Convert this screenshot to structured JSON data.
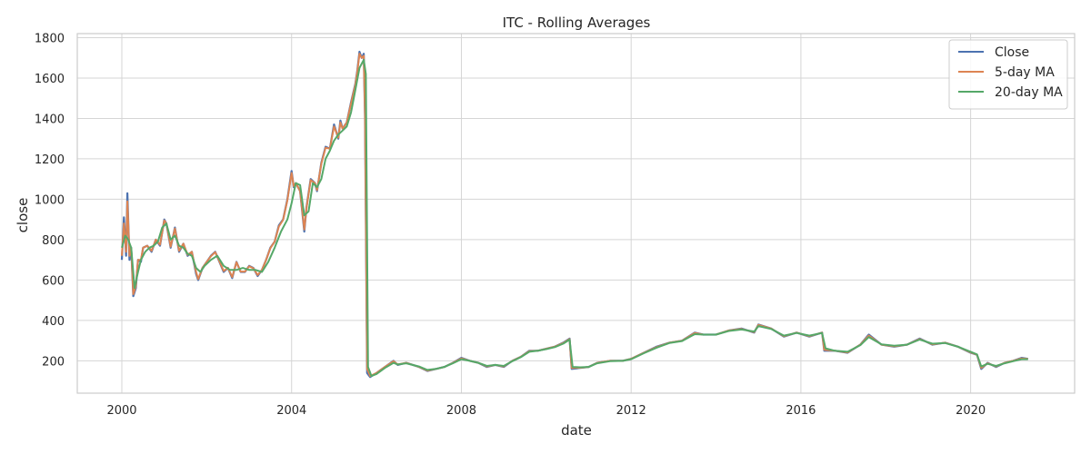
{
  "chart_data": {
    "type": "line",
    "title": "ITC - Rolling Averages",
    "xlabel": "date",
    "ylabel": "close",
    "xlim": [
      1998.95,
      2022.45
    ],
    "ylim": [
      40,
      1820
    ],
    "x_ticks": [
      2000,
      2004,
      2008,
      2012,
      2016,
      2020
    ],
    "x_tick_labels": [
      "2000",
      "2004",
      "2008",
      "2012",
      "2016",
      "2020"
    ],
    "y_ticks": [
      200,
      400,
      600,
      800,
      1000,
      1200,
      1400,
      1600,
      1800
    ],
    "y_tick_labels": [
      "200",
      "400",
      "600",
      "800",
      "1000",
      "1200",
      "1400",
      "1600",
      "1800"
    ],
    "grid": true,
    "legend_position": "top-right",
    "colors": {
      "Close": "#4c72b0",
      "5-day MA": "#dd8452",
      "20-day MA": "#55a868",
      "grid": "#d5d5d5",
      "axes": "#cccccc"
    },
    "series": [
      {
        "name": "Close",
        "x": [
          2000.0,
          2000.05,
          2000.1,
          2000.13,
          2000.18,
          2000.22,
          2000.27,
          2000.33,
          2000.38,
          2000.45,
          2000.5,
          2000.6,
          2000.7,
          2000.8,
          2000.9,
          2001.0,
          2001.05,
          2001.15,
          2001.25,
          2001.35,
          2001.45,
          2001.55,
          2001.65,
          2001.75,
          2001.8,
          2001.9,
          2002.0,
          2002.1,
          2002.2,
          2002.3,
          2002.4,
          2002.5,
          2002.6,
          2002.7,
          2002.8,
          2002.9,
          2003.0,
          2003.1,
          2003.2,
          2003.3,
          2003.4,
          2003.5,
          2003.6,
          2003.7,
          2003.8,
          2003.9,
          2004.0,
          2004.05,
          2004.1,
          2004.2,
          2004.3,
          2004.35,
          2004.45,
          2004.55,
          2004.6,
          2004.7,
          2004.8,
          2004.9,
          2005.0,
          2005.1,
          2005.15,
          2005.2,
          2005.3,
          2005.4,
          2005.5,
          2005.55,
          2005.6,
          2005.65,
          2005.7,
          2005.73,
          2005.78,
          2005.85,
          2006.0,
          2006.2,
          2006.4,
          2006.5,
          2006.7,
          2007.0,
          2007.2,
          2007.4,
          2007.6,
          2007.8,
          2008.0,
          2008.2,
          2008.4,
          2008.6,
          2008.8,
          2009.0,
          2009.2,
          2009.4,
          2009.6,
          2009.8,
          2010.0,
          2010.2,
          2010.4,
          2010.55,
          2010.6,
          2010.8,
          2011.0,
          2011.2,
          2011.5,
          2011.8,
          2012.0,
          2012.3,
          2012.6,
          2012.9,
          2013.2,
          2013.5,
          2013.7,
          2014.0,
          2014.3,
          2014.6,
          2014.9,
          2015.0,
          2015.3,
          2015.6,
          2015.9,
          2016.2,
          2016.5,
          2016.55,
          2016.8,
          2017.1,
          2017.4,
          2017.6,
          2017.9,
          2018.2,
          2018.5,
          2018.8,
          2019.1,
          2019.4,
          2019.7,
          2020.0,
          2020.15,
          2020.25,
          2020.4,
          2020.6,
          2020.8,
          2021.0,
          2021.2,
          2021.35
        ],
        "values": [
          700,
          910,
          720,
          1030,
          700,
          760,
          520,
          560,
          700,
          690,
          760,
          770,
          740,
          800,
          770,
          900,
          880,
          760,
          860,
          740,
          780,
          720,
          740,
          630,
          600,
          660,
          690,
          720,
          740,
          690,
          640,
          660,
          610,
          690,
          640,
          640,
          670,
          660,
          620,
          650,
          700,
          760,
          790,
          870,
          900,
          1000,
          1140,
          1060,
          1080,
          1040,
          840,
          960,
          1100,
          1080,
          1040,
          1180,
          1260,
          1250,
          1370,
          1300,
          1390,
          1350,
          1380,
          1480,
          1570,
          1640,
          1730,
          1700,
          1720,
          1400,
          140,
          120,
          140,
          170,
          200,
          180,
          190,
          170,
          150,
          160,
          170,
          190,
          215,
          200,
          190,
          170,
          180,
          170,
          200,
          220,
          250,
          250,
          260,
          270,
          290,
          310,
          160,
          165,
          170,
          190,
          200,
          200,
          210,
          240,
          270,
          290,
          300,
          340,
          330,
          330,
          350,
          360,
          340,
          380,
          360,
          320,
          340,
          320,
          340,
          250,
          250,
          240,
          280,
          330,
          280,
          270,
          280,
          310,
          280,
          290,
          270,
          240,
          230,
          160,
          190,
          170,
          190,
          200,
          215,
          210
        ]
      },
      {
        "name": "5-day MA",
        "x": [
          2000.0,
          2000.05,
          2000.1,
          2000.13,
          2000.18,
          2000.22,
          2000.27,
          2000.33,
          2000.38,
          2000.45,
          2000.5,
          2000.6,
          2000.7,
          2000.8,
          2000.9,
          2001.0,
          2001.05,
          2001.15,
          2001.25,
          2001.35,
          2001.45,
          2001.55,
          2001.65,
          2001.75,
          2001.8,
          2001.9,
          2002.0,
          2002.1,
          2002.2,
          2002.3,
          2002.4,
          2002.5,
          2002.6,
          2002.7,
          2002.8,
          2002.9,
          2003.0,
          2003.1,
          2003.2,
          2003.3,
          2003.4,
          2003.5,
          2003.6,
          2003.7,
          2003.8,
          2003.9,
          2004.0,
          2004.05,
          2004.1,
          2004.2,
          2004.3,
          2004.35,
          2004.45,
          2004.55,
          2004.6,
          2004.7,
          2004.8,
          2004.9,
          2005.0,
          2005.1,
          2005.15,
          2005.2,
          2005.3,
          2005.4,
          2005.5,
          2005.55,
          2005.6,
          2005.65,
          2005.7,
          2005.73,
          2005.78,
          2005.85,
          2006.0,
          2006.2,
          2006.4,
          2006.5,
          2006.7,
          2007.0,
          2007.2,
          2007.4,
          2007.6,
          2007.8,
          2008.0,
          2008.2,
          2008.4,
          2008.6,
          2008.8,
          2009.0,
          2009.2,
          2009.4,
          2009.6,
          2009.8,
          2010.0,
          2010.2,
          2010.4,
          2010.55,
          2010.6,
          2010.8,
          2011.0,
          2011.2,
          2011.5,
          2011.8,
          2012.0,
          2012.3,
          2012.6,
          2012.9,
          2013.2,
          2013.5,
          2013.7,
          2014.0,
          2014.3,
          2014.6,
          2014.9,
          2015.0,
          2015.3,
          2015.6,
          2015.9,
          2016.2,
          2016.5,
          2016.55,
          2016.8,
          2017.1,
          2017.4,
          2017.6,
          2017.9,
          2018.2,
          2018.5,
          2018.8,
          2019.1,
          2019.4,
          2019.7,
          2020.0,
          2020.15,
          2020.25,
          2020.4,
          2020.6,
          2020.8,
          2021.0,
          2021.2,
          2021.35
        ],
        "values": [
          720,
          880,
          740,
          990,
          720,
          760,
          530,
          570,
          700,
          700,
          760,
          770,
          745,
          800,
          775,
          895,
          880,
          765,
          855,
          745,
          780,
          725,
          740,
          640,
          605,
          660,
          690,
          718,
          738,
          692,
          645,
          660,
          615,
          688,
          642,
          642,
          668,
          658,
          625,
          650,
          700,
          758,
          790,
          865,
          898,
          995,
          1130,
          1065,
          1080,
          1040,
          850,
          955,
          1095,
          1080,
          1045,
          1175,
          1255,
          1250,
          1360,
          1305,
          1380,
          1350,
          1380,
          1475,
          1565,
          1635,
          1720,
          1700,
          1710,
          1420,
          160,
          125,
          140,
          170,
          198,
          182,
          190,
          170,
          152,
          160,
          170,
          190,
          212,
          200,
          190,
          172,
          180,
          172,
          200,
          220,
          248,
          250,
          260,
          270,
          288,
          308,
          165,
          166,
          170,
          190,
          200,
          200,
          210,
          240,
          268,
          290,
          300,
          338,
          330,
          330,
          350,
          358,
          342,
          378,
          360,
          322,
          340,
          322,
          340,
          255,
          250,
          242,
          280,
          325,
          280,
          272,
          280,
          308,
          282,
          290,
          270,
          242,
          230,
          165,
          188,
          172,
          190,
          200,
          212,
          210
        ]
      },
      {
        "name": "20-day MA",
        "x": [
          2000.0,
          2000.08,
          2000.15,
          2000.22,
          2000.3,
          2000.38,
          2000.45,
          2000.55,
          2000.65,
          2000.75,
          2000.85,
          2000.95,
          2001.05,
          2001.15,
          2001.25,
          2001.35,
          2001.45,
          2001.55,
          2001.65,
          2001.75,
          2001.85,
          2001.95,
          2002.1,
          2002.25,
          2002.4,
          2002.55,
          2002.7,
          2002.85,
          2003.0,
          2003.15,
          2003.3,
          2003.45,
          2003.6,
          2003.75,
          2003.9,
          2004.0,
          2004.1,
          2004.2,
          2004.3,
          2004.4,
          2004.5,
          2004.6,
          2004.7,
          2004.8,
          2004.9,
          2005.0,
          2005.1,
          2005.2,
          2005.3,
          2005.4,
          2005.5,
          2005.6,
          2005.7,
          2005.75,
          2005.8,
          2005.88,
          2006.0,
          2006.2,
          2006.4,
          2006.5,
          2006.7,
          2007.0,
          2007.2,
          2007.4,
          2007.6,
          2007.8,
          2008.0,
          2008.2,
          2008.4,
          2008.6,
          2008.8,
          2009.0,
          2009.2,
          2009.4,
          2009.6,
          2009.8,
          2010.0,
          2010.2,
          2010.4,
          2010.55,
          2010.62,
          2010.8,
          2011.0,
          2011.2,
          2011.5,
          2011.8,
          2012.0,
          2012.3,
          2012.6,
          2012.9,
          2013.2,
          2013.5,
          2013.7,
          2014.0,
          2014.3,
          2014.6,
          2014.9,
          2015.0,
          2015.3,
          2015.6,
          2015.9,
          2016.2,
          2016.5,
          2016.58,
          2016.8,
          2017.1,
          2017.4,
          2017.6,
          2017.9,
          2018.2,
          2018.5,
          2018.8,
          2019.1,
          2019.4,
          2019.7,
          2020.0,
          2020.15,
          2020.25,
          2020.4,
          2020.6,
          2020.8,
          2021.0,
          2021.2,
          2021.35
        ],
        "values": [
          760,
          820,
          800,
          760,
          560,
          640,
          700,
          740,
          760,
          770,
          790,
          860,
          880,
          800,
          820,
          770,
          760,
          730,
          720,
          660,
          640,
          670,
          700,
          720,
          670,
          650,
          650,
          660,
          650,
          650,
          640,
          690,
          760,
          840,
          900,
          980,
          1080,
          1070,
          920,
          940,
          1080,
          1060,
          1100,
          1200,
          1240,
          1290,
          1320,
          1340,
          1360,
          1430,
          1540,
          1650,
          1690,
          1620,
          170,
          125,
          135,
          165,
          190,
          182,
          188,
          172,
          155,
          160,
          170,
          188,
          208,
          200,
          190,
          175,
          180,
          175,
          198,
          218,
          245,
          250,
          258,
          268,
          285,
          305,
          170,
          168,
          170,
          188,
          198,
          200,
          208,
          238,
          265,
          288,
          298,
          332,
          330,
          330,
          348,
          355,
          345,
          372,
          358,
          325,
          338,
          325,
          338,
          262,
          250,
          245,
          278,
          318,
          282,
          275,
          280,
          305,
          285,
          288,
          270,
          245,
          232,
          172,
          185,
          175,
          188,
          198,
          208,
          208
        ]
      }
    ]
  }
}
